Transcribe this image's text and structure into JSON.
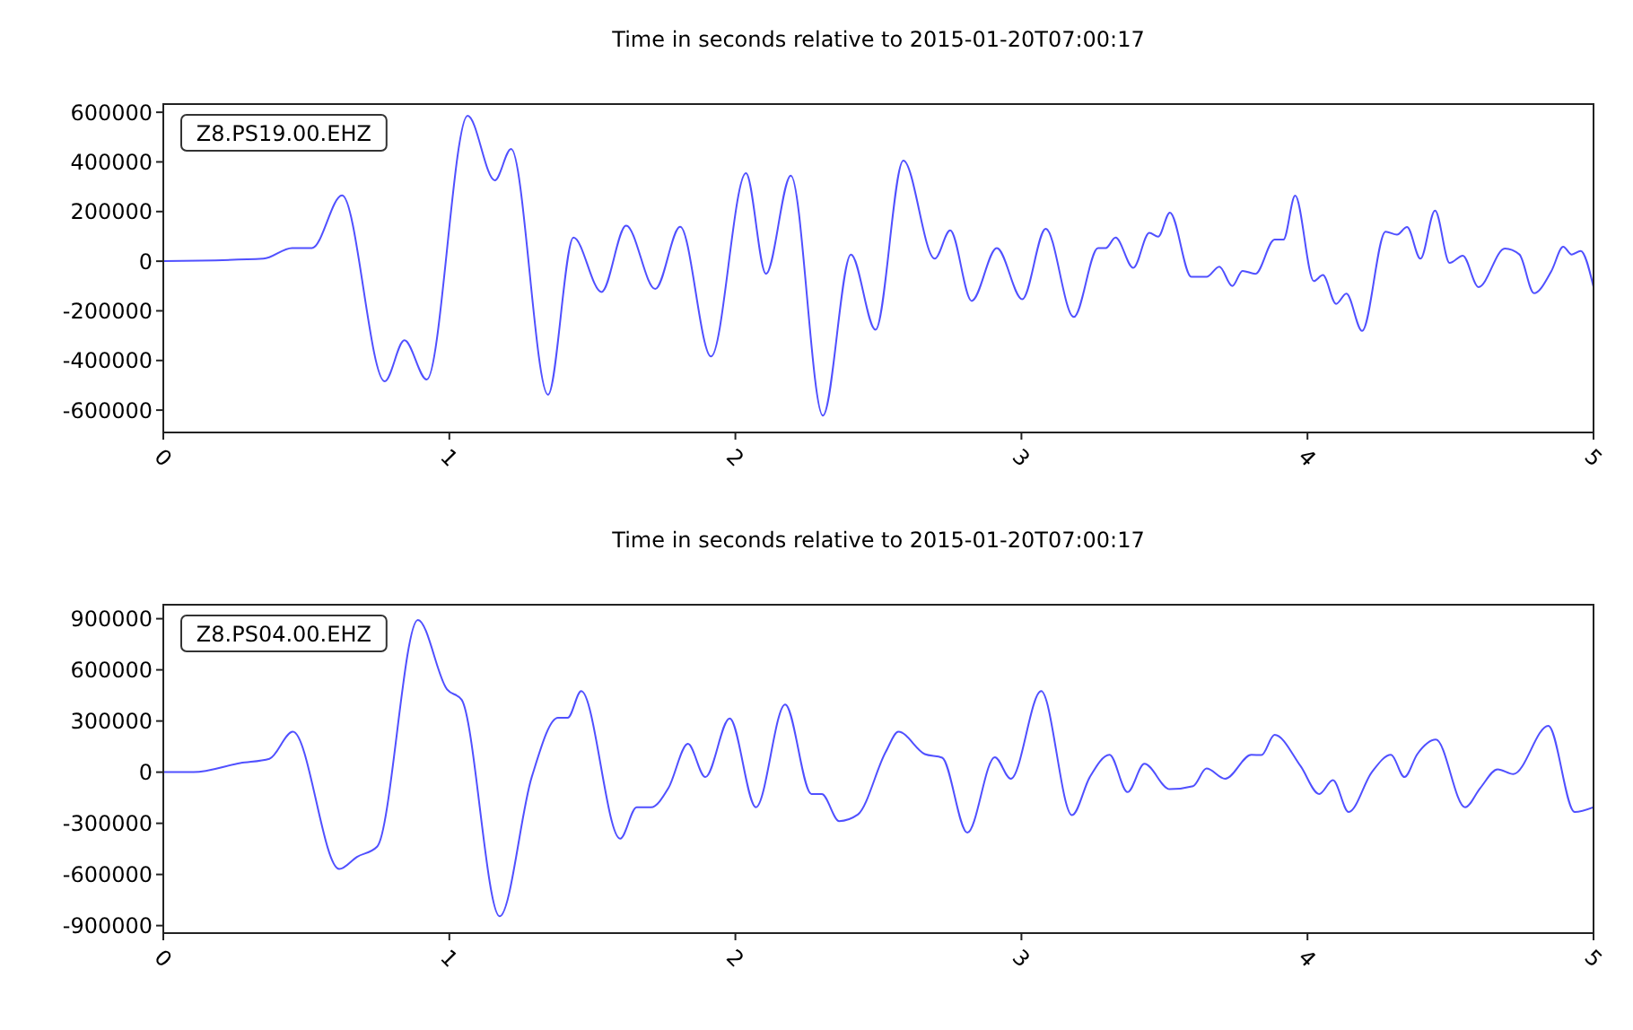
{
  "chart_data": [
    {
      "type": "line",
      "title": "Time in seconds relative to 2015-01-20T07:00:17",
      "annotations": [
        "Z8.PS19.00.EHZ"
      ],
      "xlim": [
        0,
        5
      ],
      "xticks": [
        0,
        1,
        2,
        3,
        4,
        5
      ],
      "ylim": [
        -690000,
        633000
      ],
      "yticks": [
        -600000,
        -400000,
        -200000,
        0,
        200000,
        400000,
        600000
      ],
      "grid": false,
      "marker": "none",
      "line_style": "solid",
      "series": [
        {
          "color": "#5050ff",
          "x": [
            0,
            0.35,
            0.45,
            0.52,
            0.625,
            0.774,
            0.843,
            0.921,
            1.064,
            1.159,
            1.216,
            1.345,
            1.434,
            1.532,
            1.618,
            1.72,
            1.807,
            1.915,
            2.037,
            2.107,
            2.194,
            2.306,
            2.404,
            2.49,
            2.587,
            2.697,
            2.751,
            2.826,
            2.914,
            3.003,
            3.085,
            3.183,
            3.268,
            3.295,
            3.329,
            3.391,
            3.447,
            3.478,
            3.519,
            3.594,
            3.647,
            3.692,
            3.737,
            3.773,
            3.818,
            3.885,
            3.916,
            3.957,
            4.022,
            4.054,
            4.1,
            4.136,
            4.191,
            4.273,
            4.313,
            4.348,
            4.395,
            4.446,
            4.497,
            4.543,
            4.598,
            4.69,
            4.741,
            4.792,
            4.853,
            4.894,
            4.924,
            4.955,
            5.0
          ],
          "values": [
            0,
            10000,
            53000,
            53000,
            265000,
            -484000,
            -319000,
            -477000,
            586000,
            326000,
            452000,
            -538000,
            95000,
            -124000,
            143000,
            -112000,
            139000,
            -384000,
            355000,
            -51000,
            345000,
            -622000,
            27000,
            -276000,
            405000,
            10000,
            124000,
            -160000,
            53000,
            -153000,
            131000,
            -225000,
            53000,
            53000,
            95000,
            -27000,
            114000,
            99000,
            196000,
            -63000,
            -63000,
            -22000,
            -100000,
            -39000,
            -51000,
            87000,
            87000,
            264000,
            -80000,
            -56000,
            -172000,
            -131000,
            -281000,
            119000,
            107000,
            138000,
            10000,
            204000,
            -7000,
            22000,
            -104000,
            51000,
            27000,
            -129000,
            -39000,
            58000,
            27000,
            41000,
            -104000
          ]
        }
      ]
    },
    {
      "type": "line",
      "title": "Time in seconds relative to 2015-01-20T07:00:17",
      "annotations": [
        "Z8.PS04.00.EHZ"
      ],
      "xlim": [
        0,
        5
      ],
      "xticks": [
        0,
        1,
        2,
        3,
        4,
        5
      ],
      "ylim": [
        -944000,
        982000
      ],
      "yticks": [
        -900000,
        -600000,
        -300000,
        0,
        300000,
        600000,
        900000
      ],
      "grid": false,
      "marker": "none",
      "line_style": "solid",
      "series": [
        {
          "color": "#5050ff",
          "x": [
            0,
            0.106,
            0.269,
            0.371,
            0.453,
            0.615,
            0.677,
            0.748,
            0.89,
            0.992,
            1.043,
            1.176,
            1.288,
            1.38,
            1.414,
            1.461,
            1.597,
            1.655,
            1.705,
            1.766,
            1.834,
            1.895,
            1.98,
            2.072,
            2.174,
            2.266,
            2.302,
            2.363,
            2.428,
            2.526,
            2.57,
            2.662,
            2.723,
            2.811,
            2.907,
            2.963,
            3.069,
            3.177,
            3.239,
            3.308,
            3.371,
            3.43,
            3.518,
            3.6,
            3.647,
            3.712,
            3.804,
            3.839,
            3.885,
            3.976,
            4.041,
            4.089,
            4.144,
            4.225,
            4.292,
            4.339,
            4.384,
            4.449,
            4.551,
            4.604,
            4.665,
            4.72,
            4.842,
            4.934,
            5.0
          ],
          "values": [
            0,
            0,
            53000,
            78000,
            237000,
            -568000,
            -497000,
            -436000,
            893000,
            485000,
            425000,
            -845000,
            -29000,
            319000,
            319000,
            475000,
            -390000,
            -206000,
            -206000,
            -93000,
            166000,
            -29000,
            315000,
            -206000,
            397000,
            -128000,
            -128000,
            -287000,
            -249000,
            120000,
            237000,
            106000,
            85000,
            -355000,
            88000,
            -39000,
            475000,
            -252000,
            -29000,
            102000,
            -117000,
            49000,
            -100000,
            -82000,
            21000,
            -39000,
            102000,
            100000,
            219000,
            35000,
            -128000,
            -47000,
            -234000,
            0,
            102000,
            -29000,
            106000,
            191000,
            -206000,
            -93000,
            17000,
            -11000,
            272000,
            -234000,
            -206000
          ]
        }
      ]
    }
  ]
}
